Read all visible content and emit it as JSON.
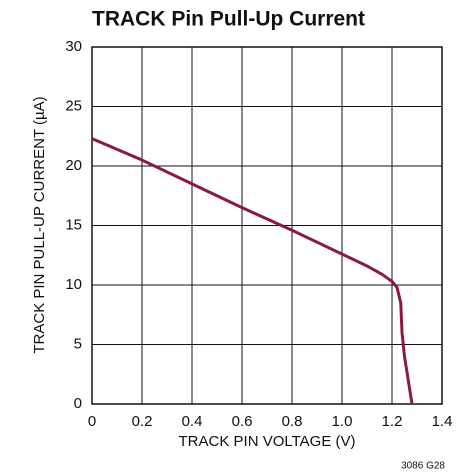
{
  "chart_data": {
    "type": "line",
    "title": "TRACK Pin Pull-Up Current",
    "x_label": "TRACK PIN VOLTAGE (V)",
    "y_label": "TRACK PIN PULL-UP CURRENT (µA)",
    "annotation": "3086 G28",
    "x": [
      0,
      0.2,
      0.4,
      0.6,
      0.8,
      1.0,
      1.1,
      1.16,
      1.2,
      1.22,
      1.235,
      1.24,
      1.25,
      1.265,
      1.28
    ],
    "series": [
      {
        "name": "TRACK",
        "color": "#8c1a3c",
        "values": [
          22.3,
          20.5,
          18.5,
          16.5,
          14.6,
          12.6,
          11.6,
          10.9,
          10.3,
          9.8,
          8.5,
          6,
          4,
          2,
          0
        ]
      }
    ],
    "xlim": [
      0,
      1.4
    ],
    "xticks": [
      0,
      0.2,
      0.4,
      0.6,
      0.8,
      {
        "value": 1,
        "label": "1.0"
      },
      1.2,
      1.4
    ],
    "ylim": [
      0,
      30
    ],
    "yticks": [
      0,
      5,
      10,
      15,
      20,
      25,
      30
    ],
    "grid": true
  }
}
